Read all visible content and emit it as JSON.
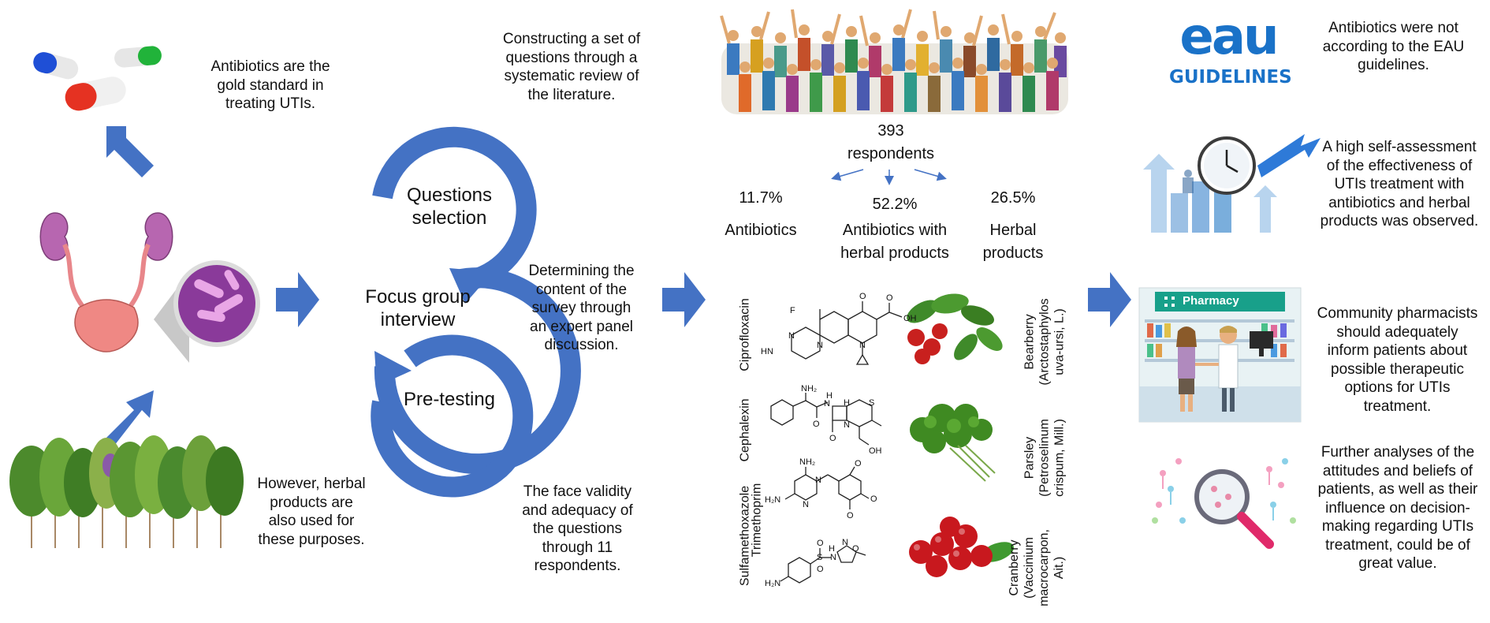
{
  "colors": {
    "arrow": "#4472C4",
    "circle": "#4472C4",
    "text": "#111111"
  },
  "col1": {
    "top_text": [
      "Antibiotics are the",
      "gold standard in",
      "treating UTIs."
    ],
    "bottom_text": [
      "However, herbal",
      "products are",
      "also used for",
      "these purposes."
    ]
  },
  "process": {
    "step1": [
      "Questions",
      "selection"
    ],
    "step2": [
      "Focus group",
      "interview"
    ],
    "step3": [
      "Pre-testing"
    ],
    "note_top": [
      "Constructing a set of",
      "questions through a",
      "systematic review of",
      "the literature."
    ],
    "note_mid": [
      "Determining the",
      "content of the",
      "survey through",
      "an expert panel",
      "discussion."
    ],
    "note_bottom": [
      "The face validity",
      "and adequacy of",
      "the questions",
      "through 11",
      "respondents."
    ]
  },
  "results": {
    "respondents": [
      "393",
      "respondents"
    ],
    "groups": [
      {
        "percent": "11.7%",
        "label": [
          "Antibiotics"
        ]
      },
      {
        "percent": "52.2%",
        "label": [
          "Antibiotics with",
          "herbal products"
        ]
      },
      {
        "percent": "26.5%",
        "label": [
          "Herbal",
          "products"
        ]
      }
    ],
    "antibiotics": [
      "Ciprofloxacin",
      "Cephalexin",
      "Sulfamethoxazole",
      "Trimethoprim"
    ],
    "herbs": [
      [
        "Bearberry",
        "(Arctostaphylos",
        "uva-ursi, L.)"
      ],
      [
        "Parsley",
        "(Petroselinum",
        "crispum, Mill.)"
      ],
      [
        "Cranberry",
        "(Vaccinium",
        "macrocarpon,",
        "Ait.)"
      ]
    ]
  },
  "chem_labels": {
    "cipro": [
      "F",
      "O",
      "OH",
      "O",
      "N",
      "N",
      "HN",
      "N"
    ],
    "cephalexin": [
      "NH₂",
      "H",
      "N",
      "H",
      "S",
      "O",
      "N",
      "O",
      "OH"
    ],
    "tmp": [
      "NH₂",
      "N",
      "H₂N",
      "N",
      "O",
      "O",
      "O"
    ],
    "smx": [
      "O",
      "S",
      "O",
      "H",
      "N",
      "N",
      "O",
      "H₂N"
    ]
  },
  "conclusions": {
    "eau_logo": {
      "top": "eau",
      "bottom": "GUIDELINES"
    },
    "pharmacy_sign": "Pharmacy",
    "items": [
      [
        "Antibiotics were not",
        "according to the EAU",
        "guidelines."
      ],
      [
        "A high self-assessment",
        "of the effectiveness of",
        "UTIs treatment with",
        "antibiotics and herbal",
        "products was observed."
      ],
      [
        "Community pharmacists",
        "should adequately",
        "inform patients about",
        "possible therapeutic",
        "options for UTIs",
        "treatment."
      ],
      [
        "Further analyses of the",
        "attitudes and beliefs of",
        "patients, as well as their",
        "influence on decision-",
        "making regarding UTIs",
        "treatment, could be of",
        "great value."
      ]
    ]
  }
}
